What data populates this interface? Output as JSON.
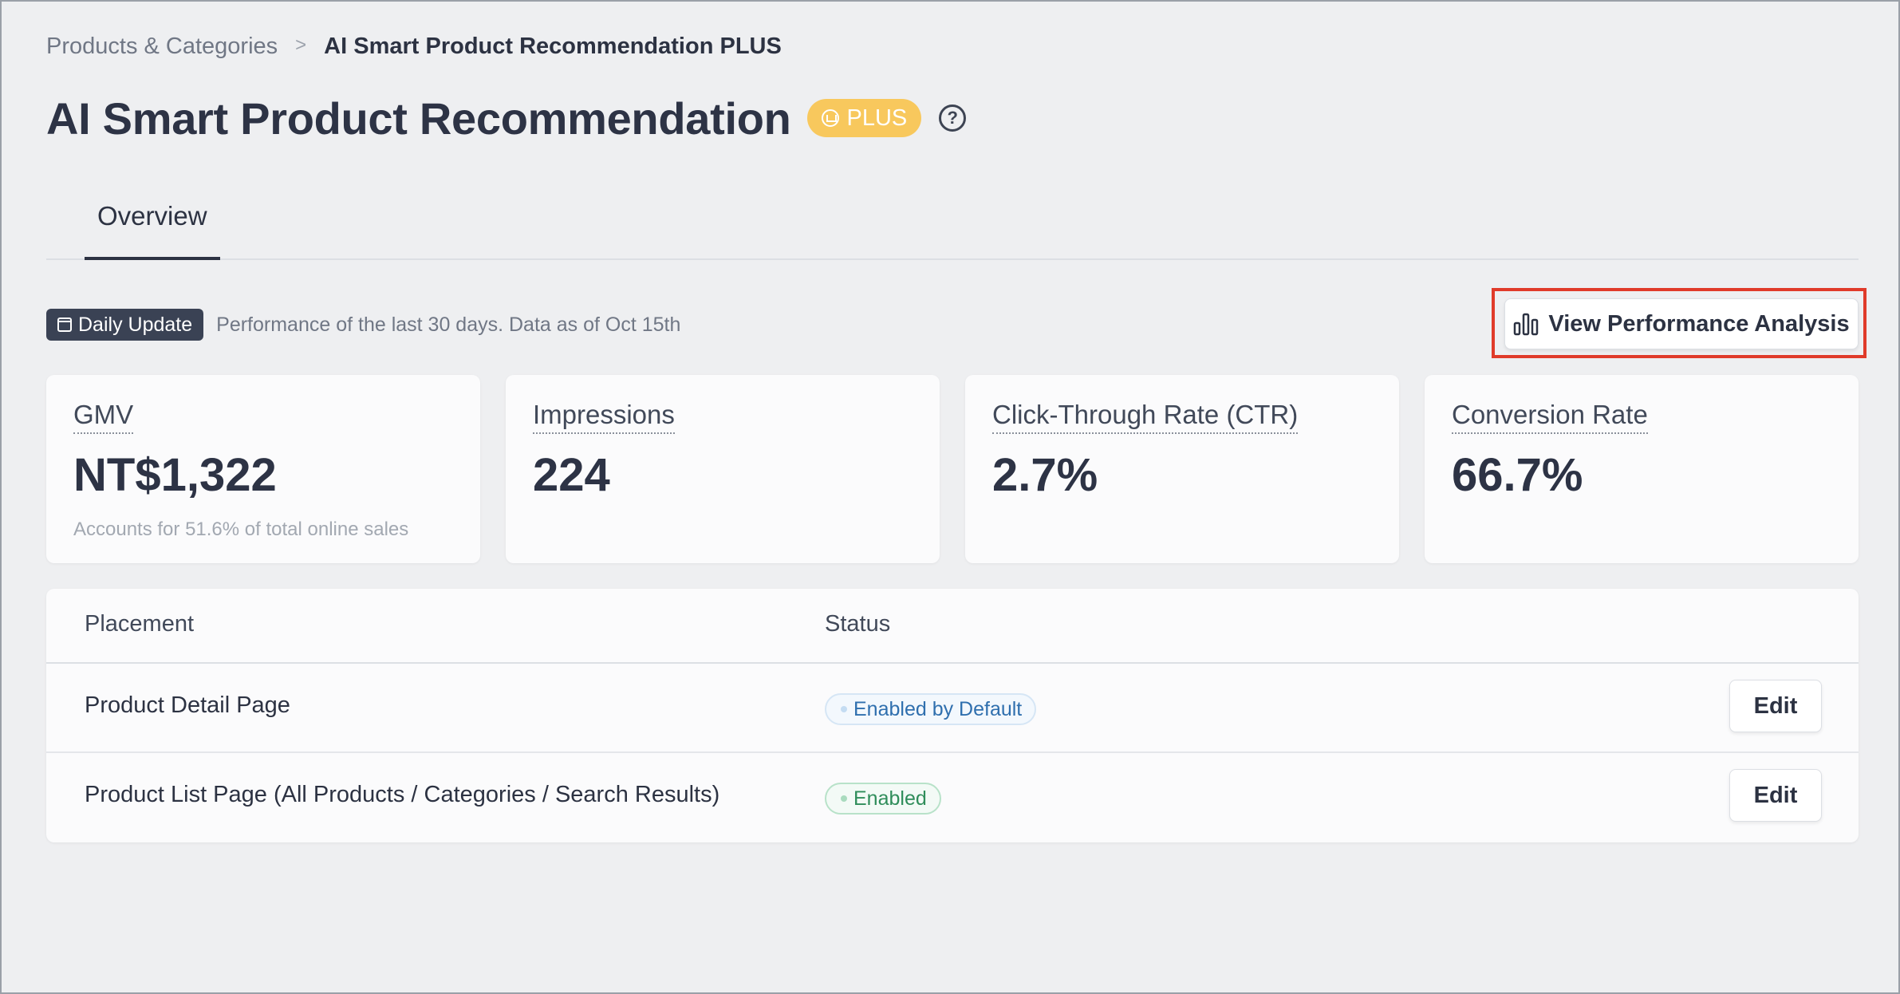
{
  "breadcrumb": {
    "parent": "Products & Categories",
    "separator": ">",
    "current": "AI Smart Product Recommendation PLUS"
  },
  "header": {
    "title": "AI Smart Product Recommendation",
    "badge": "PLUS",
    "help_symbol": "?"
  },
  "tabs": [
    {
      "label": "Overview",
      "active": true
    }
  ],
  "info": {
    "badge": "Daily Update",
    "text": "Performance of the last 30 days. Data as of Oct 15th"
  },
  "toolbar": {
    "performance_button": "View Performance Analysis",
    "highlight_color": "#e03b2a"
  },
  "metrics": [
    {
      "label": "GMV",
      "value": "NT$1,322",
      "sub": "Accounts for 51.6% of total online sales"
    },
    {
      "label": "Impressions",
      "value": "224",
      "sub": ""
    },
    {
      "label": "Click-Through Rate (CTR)",
      "value": "2.7%",
      "sub": ""
    },
    {
      "label": "Conversion Rate",
      "value": "66.7%",
      "sub": ""
    }
  ],
  "table": {
    "headers": {
      "placement": "Placement",
      "status": "Status"
    },
    "rows": [
      {
        "placement": "Product Detail Page",
        "status": "Enabled by Default",
        "status_color": "#2f6fae",
        "action": "Edit"
      },
      {
        "placement": "Product List Page (All Products / Categories / Search Results)",
        "status": "Enabled",
        "status_color": "#2f8d5a",
        "action": "Edit"
      }
    ]
  },
  "colors": {
    "badge_plus": "#f8c85d",
    "daily_badge": "#3a4254",
    "text_primary": "#2d3345"
  },
  "icons": {
    "badge_plus": "crown-icon",
    "help": "help-circle-icon",
    "daily_update": "calendar-icon",
    "performance": "bar-chart-icon"
  }
}
